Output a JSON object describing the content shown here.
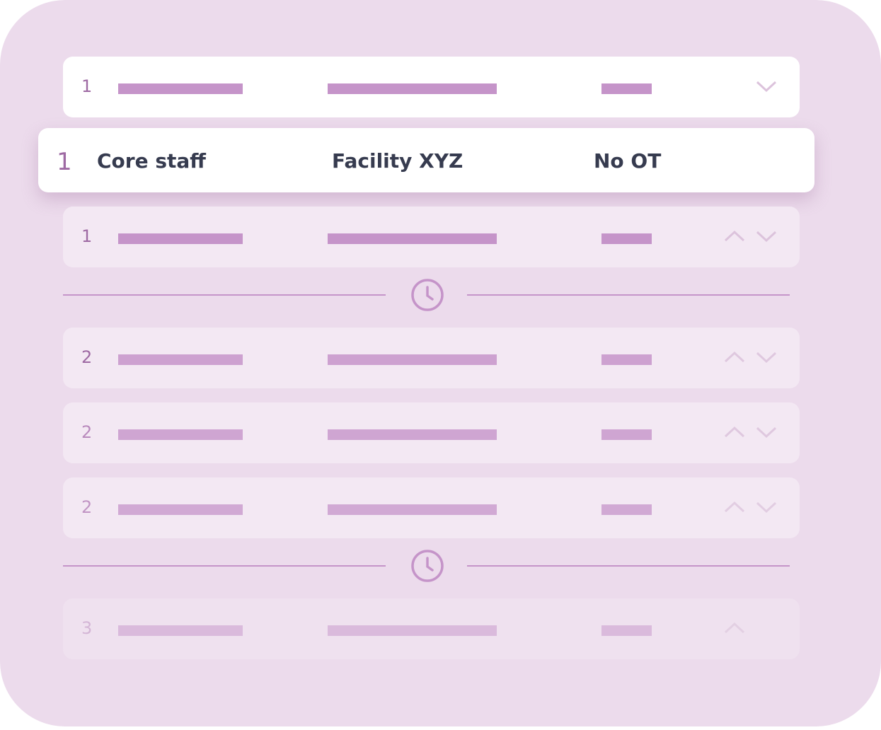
{
  "colors": {
    "bar": "#c594c9",
    "number": "#9e6aa3",
    "text": "#363b4f",
    "background": "#ecdbec"
  },
  "rows_top": [
    {
      "number": "1",
      "controls": [
        "chevron-down"
      ]
    }
  ],
  "highlighted": {
    "number": "1",
    "role": "Core staff",
    "location": "Facility XYZ",
    "overtime": "No OT"
  },
  "rows_group1": [
    {
      "number": "1",
      "controls": [
        "chevron-up",
        "chevron-down"
      ]
    }
  ],
  "rows_group2": [
    {
      "number": "2"
    },
    {
      "number": "2"
    },
    {
      "number": "2"
    }
  ],
  "rows_group3": [
    {
      "number": "3",
      "controls": [
        "chevron-up"
      ]
    }
  ],
  "dividers": [
    {
      "icon": "clock-icon"
    },
    {
      "icon": "clock-icon"
    }
  ]
}
